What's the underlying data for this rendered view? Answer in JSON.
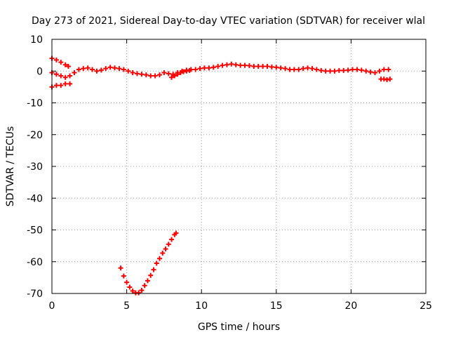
{
  "chart_data": {
    "type": "scatter",
    "title": "Day 273 of 2021, Sidereal Day-to-day VTEC variation (SDTVAR) for receiver wlal",
    "xlabel": "GPS time / hours",
    "ylabel": "SDTVAR / TECUs",
    "xlim": [
      0,
      25
    ],
    "ylim": [
      -70,
      10
    ],
    "xticks": [
      0,
      5,
      10,
      15,
      20,
      25
    ],
    "yticks": [
      10,
      0,
      -10,
      -20,
      -30,
      -40,
      -50,
      -60,
      -70
    ],
    "grid": true,
    "marker": "plus",
    "color": "#ff0000",
    "series": [
      {
        "x": [
          0.0,
          0.3,
          0.6,
          0.9,
          1.1
        ],
        "y": [
          4.0,
          3.5,
          2.8,
          2.0,
          1.5
        ]
      },
      {
        "x": [
          0.0,
          0.3,
          0.6,
          0.9,
          1.2,
          1.5,
          1.8,
          2.1,
          2.4,
          2.7,
          3.0,
          3.3,
          3.6,
          3.9,
          4.2,
          4.5,
          4.8,
          5.1,
          5.4,
          5.7,
          6.0,
          6.3,
          6.6,
          6.9,
          7.2,
          7.5,
          7.8,
          8.1,
          8.4,
          8.7,
          9.0,
          9.3,
          9.6,
          9.9,
          10.2,
          10.5,
          10.8,
          11.1,
          11.4,
          11.7,
          12.0,
          12.3,
          12.6,
          12.9,
          13.2,
          13.5,
          13.8,
          14.1,
          14.4,
          14.7,
          15.0,
          15.3,
          15.6,
          15.9,
          16.2,
          16.5,
          16.8,
          17.1,
          17.4,
          17.7,
          18.0,
          18.3,
          18.6,
          18.9,
          19.2,
          19.5,
          19.8,
          20.1,
          20.4,
          20.7,
          21.0,
          21.3,
          21.6,
          21.9,
          22.2,
          22.5
        ],
        "y": [
          -0.5,
          -1.0,
          -1.5,
          -2.0,
          -1.5,
          -0.5,
          0.5,
          0.8,
          1.0,
          0.5,
          0.0,
          0.3,
          0.8,
          1.2,
          1.0,
          0.8,
          0.5,
          0.0,
          -0.5,
          -0.8,
          -1.0,
          -1.2,
          -1.5,
          -1.5,
          -1.2,
          -0.5,
          -0.8,
          -1.0,
          -0.5,
          0.0,
          0.3,
          0.5,
          0.5,
          0.8,
          1.0,
          1.0,
          1.2,
          1.5,
          1.8,
          2.0,
          2.2,
          2.0,
          1.8,
          1.8,
          1.7,
          1.5,
          1.5,
          1.5,
          1.5,
          1.3,
          1.2,
          1.0,
          0.8,
          0.5,
          0.5,
          0.5,
          0.8,
          1.0,
          0.8,
          0.5,
          0.2,
          0.0,
          0.0,
          0.0,
          0.2,
          0.2,
          0.3,
          0.5,
          0.5,
          0.3,
          0.0,
          -0.3,
          -0.5,
          0.0,
          0.5,
          0.5
        ]
      },
      {
        "x": [
          0.0,
          0.3,
          0.6,
          0.9,
          1.2
        ],
        "y": [
          -5.0,
          -4.5,
          -4.5,
          -4.0,
          -4.0
        ]
      },
      {
        "x": [
          8.0,
          8.2,
          8.4,
          8.6,
          8.8,
          9.0,
          9.2
        ],
        "y": [
          -2.0,
          -1.5,
          -1.0,
          -0.5,
          -0.2,
          0.0,
          0.2
        ]
      },
      {
        "x": [
          22.0,
          22.2,
          22.4,
          22.6
        ],
        "y": [
          -2.5,
          -2.5,
          -2.7,
          -2.5
        ]
      },
      {
        "x": [
          4.6,
          4.8,
          5.0,
          5.2,
          5.4,
          5.6,
          5.8,
          6.0,
          6.2,
          6.4,
          6.6,
          6.8,
          7.0,
          7.2,
          7.4,
          7.6,
          7.8,
          8.0,
          8.2,
          8.3
        ],
        "y": [
          -62.0,
          -64.5,
          -66.5,
          -68.0,
          -69.2,
          -69.8,
          -69.8,
          -69.0,
          -67.5,
          -66.0,
          -64.3,
          -62.5,
          -60.5,
          -59.0,
          -57.3,
          -56.0,
          -54.5,
          -53.0,
          -51.5,
          -51.0
        ]
      }
    ]
  }
}
